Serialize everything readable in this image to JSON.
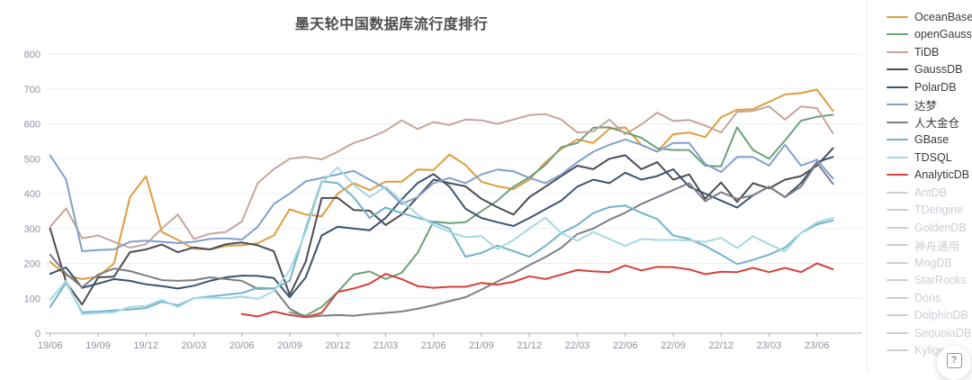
{
  "page": {
    "background": "#ffffff"
  },
  "help_button": {
    "label": "?"
  },
  "legend": {
    "disabled_color": "#ccced4",
    "position": "right"
  },
  "chart_data": {
    "type": "line",
    "title": "墨天轮中国数据库流行度排行",
    "xlabel": "",
    "ylabel": "",
    "ylim": [
      0,
      800
    ],
    "y_tick_interval": 100,
    "x_tick_every": 3,
    "grid": true,
    "legend_position": "right",
    "categories": [
      "19/06",
      "19/07",
      "19/08",
      "19/09",
      "19/10",
      "19/11",
      "19/12",
      "20/01",
      "20/02",
      "20/03",
      "20/04",
      "20/05",
      "20/06",
      "20/07",
      "20/08",
      "20/09",
      "20/10",
      "20/11",
      "20/12",
      "21/01",
      "21/02",
      "21/03",
      "21/04",
      "21/05",
      "21/06",
      "21/07",
      "21/08",
      "21/09",
      "21/10",
      "21/11",
      "21/12",
      "22/01",
      "22/02",
      "22/03",
      "22/04",
      "22/05",
      "22/06",
      "22/07",
      "22/08",
      "22/09",
      "22/10",
      "22/11",
      "22/12",
      "23/01",
      "23/02",
      "23/03",
      "23/04",
      "23/05",
      "23/06",
      "23/07"
    ],
    "series": [
      {
        "name": "OceanBase",
        "color": "#DE9C3D",
        "selected": true,
        "values": [
          205,
          165,
          155,
          162,
          200,
          390,
          450,
          290,
          267,
          242,
          240,
          250,
          252,
          258,
          280,
          355,
          340,
          335,
          400,
          430,
          410,
          434,
          434,
          469,
          468,
          512,
          482,
          434,
          421,
          413,
          440,
          490,
          528,
          555,
          545,
          585,
          590,
          540,
          520,
          570,
          575,
          562,
          619,
          640,
          642,
          663,
          684,
          688,
          698,
          637
        ]
      },
      {
        "name": "openGauss",
        "color": "#69A179",
        "selected": true,
        "values": [
          null,
          null,
          null,
          null,
          null,
          null,
          null,
          null,
          null,
          null,
          null,
          null,
          null,
          null,
          null,
          60,
          50,
          75,
          118,
          168,
          177,
          155,
          173,
          230,
          320,
          315,
          318,
          350,
          380,
          420,
          447,
          482,
          533,
          545,
          589,
          590,
          575,
          560,
          530,
          525,
          525,
          480,
          478,
          590,
          525,
          500,
          552,
          609,
          620,
          626
        ]
      },
      {
        "name": "TiDB",
        "color": "#C7A59C",
        "selected": true,
        "values": [
          305,
          358,
          272,
          280,
          262,
          245,
          255,
          300,
          340,
          270,
          285,
          290,
          320,
          430,
          470,
          500,
          505,
          498,
          520,
          545,
          560,
          580,
          610,
          585,
          605,
          597,
          612,
          610,
          600,
          612,
          625,
          628,
          612,
          575,
          578,
          612,
          570,
          598,
          632,
          608,
          611,
          595,
          575,
          634,
          637,
          650,
          612,
          650,
          645,
          573
        ]
      },
      {
        "name": "GaussDB",
        "color": "#4B4C54",
        "selected": true,
        "values": [
          300,
          146,
          82,
          160,
          162,
          232,
          240,
          254,
          232,
          246,
          240,
          255,
          260,
          252,
          235,
          110,
          205,
          387,
          388,
          353,
          351,
          310,
          340,
          390,
          440,
          430,
          421,
          385,
          361,
          340,
          390,
          420,
          450,
          480,
          470,
          500,
          510,
          470,
          490,
          440,
          455,
          385,
          432,
          376,
          430,
          415,
          440,
          450,
          480,
          530
        ]
      },
      {
        "name": "PolarDB",
        "color": "#3B5370",
        "selected": true,
        "values": [
          170,
          188,
          130,
          142,
          155,
          150,
          140,
          135,
          128,
          136,
          150,
          160,
          165,
          164,
          158,
          103,
          160,
          280,
          305,
          300,
          295,
          330,
          383,
          430,
          456,
          420,
          357,
          330,
          318,
          307,
          330,
          355,
          380,
          420,
          440,
          430,
          460,
          440,
          450,
          470,
          420,
          400,
          380,
          360,
          395,
          420,
          390,
          430,
          490,
          505
        ]
      },
      {
        "name": "达梦",
        "color": "#80A0CB",
        "selected": true,
        "values": [
          510,
          440,
          235,
          238,
          240,
          262,
          265,
          262,
          258,
          262,
          270,
          272,
          268,
          305,
          370,
          400,
          435,
          445,
          455,
          465,
          440,
          415,
          370,
          390,
          430,
          445,
          430,
          455,
          469,
          464,
          445,
          430,
          455,
          490,
          520,
          540,
          555,
          540,
          520,
          545,
          545,
          485,
          462,
          505,
          505,
          480,
          540,
          480,
          497,
          443
        ]
      },
      {
        "name": "人大金仓",
        "color": "#7D7E84",
        "selected": true,
        "values": [
          225,
          170,
          132,
          168,
          185,
          178,
          165,
          152,
          150,
          152,
          160,
          155,
          150,
          127,
          128,
          70,
          46,
          50,
          52,
          50,
          55,
          58,
          62,
          70,
          80,
          92,
          103,
          125,
          148,
          170,
          195,
          218,
          245,
          284,
          300,
          325,
          345,
          370,
          390,
          410,
          430,
          378,
          404,
          385,
          395,
          420,
          390,
          420,
          488,
          428
        ]
      },
      {
        "name": "GBase",
        "color": "#72B2CB",
        "selected": true,
        "values": [
          75,
          145,
          60,
          62,
          65,
          68,
          72,
          90,
          80,
          100,
          105,
          110,
          115,
          130,
          128,
          150,
          300,
          435,
          430,
          390,
          330,
          360,
          344,
          331,
          318,
          300,
          219,
          230,
          251,
          235,
          219,
          250,
          287,
          310,
          344,
          361,
          366,
          345,
          327,
          280,
          270,
          250,
          225,
          198,
          210,
          225,
          245,
          287,
          312,
          323
        ]
      },
      {
        "name": "TDSQL",
        "color": "#A7D8DE",
        "selected": true,
        "values": [
          95,
          150,
          55,
          58,
          60,
          75,
          78,
          95,
          75,
          100,
          102,
          100,
          105,
          98,
          120,
          180,
          290,
          430,
          475,
          425,
          390,
          420,
          380,
          340,
          310,
          290,
          275,
          278,
          241,
          267,
          300,
          331,
          287,
          265,
          290,
          270,
          250,
          270,
          267,
          267,
          266,
          262,
          273,
          244,
          278,
          255,
          234,
          287,
          318,
          330
        ]
      },
      {
        "name": "AnalyticDB",
        "color": "#D6413B",
        "selected": true,
        "values": [
          null,
          null,
          null,
          null,
          null,
          null,
          null,
          null,
          null,
          null,
          null,
          null,
          55,
          48,
          62,
          52,
          46,
          58,
          118,
          128,
          142,
          170,
          155,
          135,
          130,
          133,
          133,
          144,
          139,
          147,
          163,
          155,
          168,
          181,
          177,
          175,
          194,
          180,
          190,
          189,
          183,
          169,
          176,
          175,
          187,
          175,
          187,
          175,
          200,
          183
        ]
      },
      {
        "name": "AntDB",
        "selected": false
      },
      {
        "name": "TDengine",
        "selected": false
      },
      {
        "name": "GoldenDB",
        "selected": false
      },
      {
        "name": "神舟通用",
        "selected": false
      },
      {
        "name": "MogDB",
        "selected": false
      },
      {
        "name": "StarRocks",
        "selected": false
      },
      {
        "name": "Doris",
        "selected": false
      },
      {
        "name": "DolphinDB",
        "selected": false
      },
      {
        "name": "SequoiaDB",
        "selected": false
      },
      {
        "name": "Kyligence",
        "selected": false
      }
    ]
  }
}
